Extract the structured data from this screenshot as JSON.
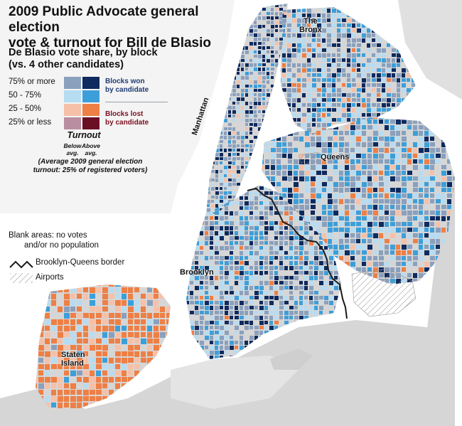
{
  "title": {
    "line1": "2009 Public Advocate general election",
    "line2": "vote & turnout for Bill de Blasio"
  },
  "legend": {
    "heading_line1": "De Blasio vote share, by block",
    "heading_line2": "(vs. 4 other candidates)",
    "rows": [
      {
        "label": "75% or more",
        "below_color": "#8aa0bd",
        "above_color": "#0e2a5e"
      },
      {
        "label": "50 - 75%",
        "below_color": "#b6dcf2",
        "above_color": "#3d9fd9"
      },
      {
        "label": "25 - 50%",
        "below_color": "#f6c0a8",
        "above_color": "#ee7f45"
      },
      {
        "label": "25% or less",
        "below_color": "#b98ea0",
        "above_color": "#6b0f24"
      }
    ],
    "won_line1": "Blocks won",
    "won_line2": "by candidate",
    "lost_line1": "Blocks lost",
    "lost_line2": "by candidate",
    "turnout_title": "Turnout",
    "below_line1": "Below",
    "below_line2": "avg.",
    "above_line1": "Above",
    "above_line2": "avg.",
    "turnout_note_line1": "(Average 2009 general election",
    "turnout_note_line2": "turnout: 25% of registered voters)",
    "blank_line1": "Blank areas: no votes",
    "blank_line2": "and/or no population",
    "border_label": "Brooklyn-Queens border",
    "airports_label": "Airports"
  },
  "places": {
    "bronx_line1": "The",
    "bronx_line2": "Bronx",
    "manhattan": "Manhattan",
    "queens": "Queens",
    "brooklyn": "Brooklyn",
    "staten_line1": "Staten",
    "staten_line2": "Island"
  },
  "colors": {
    "water": "#ffffff",
    "land_blank": "#d6d6d6",
    "border_line": "#1a1a1a"
  }
}
